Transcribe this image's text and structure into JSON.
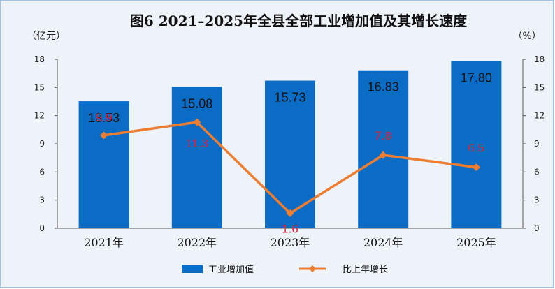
{
  "chart_data": {
    "type": "bar",
    "title": "图6  2021–2025年全县全部工业增加值及其增长速度",
    "categories": [
      "2021年",
      "2022年",
      "2023年",
      "2024年",
      "2025年"
    ],
    "series": [
      {
        "name": "工业增加值",
        "type": "bar",
        "axis": "left",
        "values": [
          13.53,
          15.08,
          15.73,
          16.83,
          17.8
        ],
        "labels": [
          "13.53",
          "15.08",
          "15.73",
          "16.83",
          "17.80"
        ],
        "color": "#0b6cc5"
      },
      {
        "name": "比上年增长",
        "type": "line",
        "axis": "right",
        "values": [
          9.9,
          11.3,
          1.6,
          7.8,
          6.5
        ],
        "labels": [
          "9.9",
          "11.3",
          "1.6",
          "7.8",
          "6.5"
        ],
        "color": "#ed7d31",
        "label_color": "#d1263b"
      }
    ],
    "y_left": {
      "unit": "（亿元）",
      "ticks": [
        "0",
        "3",
        "6",
        "9",
        "12",
        "15",
        "18"
      ],
      "ylim": [
        0,
        18
      ]
    },
    "y_right": {
      "unit": "（%）",
      "ticks": [
        "0",
        "3",
        "6",
        "9",
        "12",
        "15",
        "18"
      ],
      "ylim": [
        0,
        18
      ]
    },
    "grid": false,
    "legend": "bottom"
  }
}
